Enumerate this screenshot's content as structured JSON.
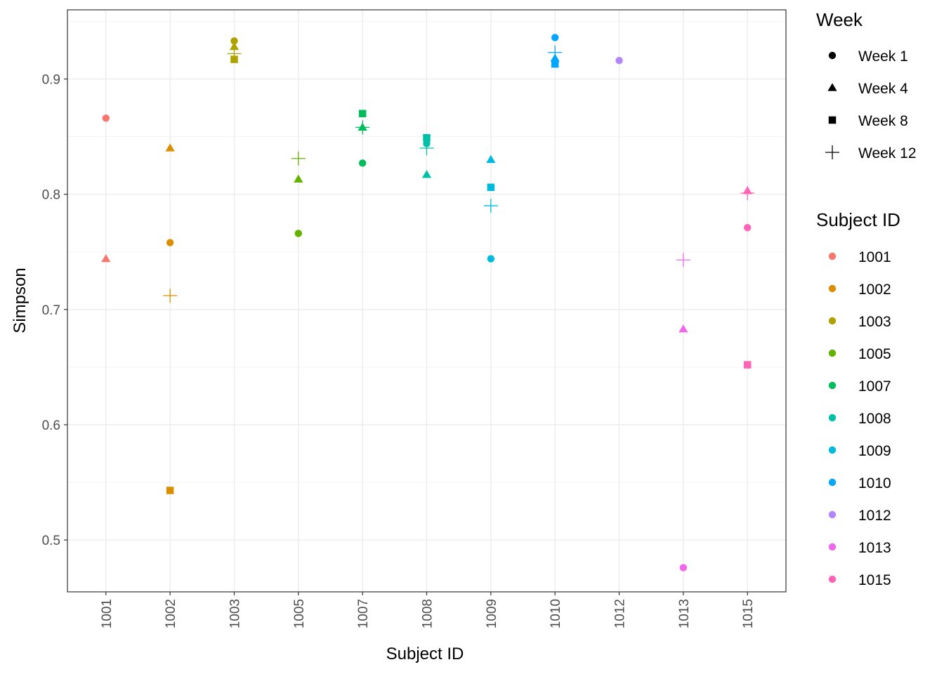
{
  "chart_data": {
    "type": "scatter",
    "title": "",
    "xlabel": "Subject ID",
    "ylabel": "Simpson",
    "categories": [
      "1001",
      "1002",
      "1003",
      "1005",
      "1007",
      "1008",
      "1009",
      "1010",
      "1012",
      "1013",
      "1015"
    ],
    "ylim": [
      0.455,
      0.96
    ],
    "yticks": [
      0.5,
      0.6,
      0.7,
      0.8,
      0.9
    ],
    "ytick_labels": [
      "0.5",
      "0.6",
      "0.7",
      "0.8",
      "0.9"
    ],
    "grid": true,
    "series": [
      {
        "name": "Week 1",
        "shape": "circle",
        "values": [
          0.866,
          0.758,
          0.933,
          0.766,
          0.827,
          0.844,
          0.744,
          0.936,
          0.916,
          0.476,
          0.771
        ]
      },
      {
        "name": "Week 4",
        "shape": "triangle",
        "values": [
          0.744,
          0.84,
          0.928,
          0.813,
          0.858,
          0.817,
          0.83,
          0.918,
          null,
          0.683,
          0.803
        ]
      },
      {
        "name": "Week 8",
        "shape": "square",
        "values": [
          null,
          0.543,
          0.917,
          null,
          0.87,
          0.849,
          0.806,
          0.913,
          null,
          null,
          0.652
        ]
      },
      {
        "name": "Week 12",
        "shape": "plus",
        "values": [
          null,
          0.712,
          0.922,
          0.831,
          0.858,
          0.84,
          0.79,
          0.923,
          null,
          0.743,
          0.801
        ]
      }
    ],
    "legends": {
      "shape": {
        "title": "Week",
        "entries": [
          "Week 1",
          "Week 4",
          "Week 8",
          "Week 12"
        ]
      },
      "color": {
        "title": "Subject ID",
        "entries": [
          "1001",
          "1002",
          "1003",
          "1005",
          "1007",
          "1008",
          "1009",
          "1010",
          "1012",
          "1013",
          "1015"
        ]
      }
    },
    "legend_placement": "right",
    "colors": [
      "#F8766D",
      "#DB8E00",
      "#AEA200",
      "#64B200",
      "#00BD5C",
      "#00C1A7",
      "#00BADE",
      "#00A6FF",
      "#B385FF",
      "#EF67EB",
      "#FF63B6"
    ]
  }
}
